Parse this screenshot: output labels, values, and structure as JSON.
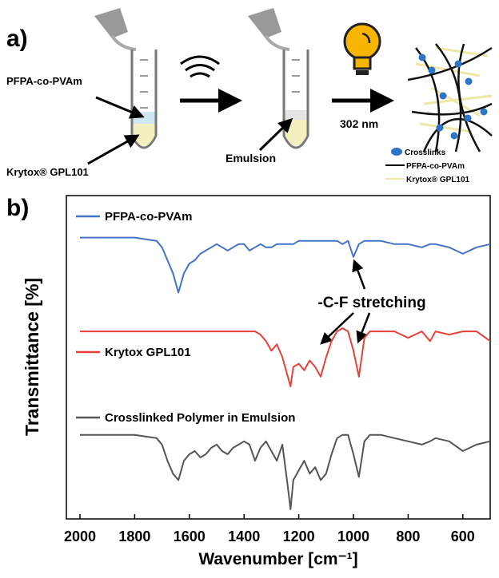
{
  "schematic": {
    "panel_label": "a)",
    "polymer_label": "PFPA-co-PVAm",
    "oil_label": "Krytox® GPL101",
    "emulsion_label": "Emulsion",
    "wavelength_label": "302 nm",
    "legend_crosslinks": "Crosslinks",
    "legend_polymer": "PFPA-co-PVAm",
    "legend_oil": "Krytox® GPL101"
  },
  "chart_data": {
    "type": "line",
    "panel_label": "b)",
    "xlabel": "Wavenumber [cm⁻¹]",
    "ylabel": "Transmittance [%]",
    "annotation": "-C-F stretching",
    "xlim": [
      2000,
      500
    ],
    "xticks": [
      2000,
      1800,
      1600,
      1400,
      1200,
      1000,
      800,
      600
    ],
    "ylim": [
      0,
      100
    ],
    "x": [
      2000,
      1900,
      1800,
      1720,
      1700,
      1680,
      1660,
      1640,
      1620,
      1600,
      1580,
      1560,
      1540,
      1520,
      1500,
      1480,
      1460,
      1440,
      1420,
      1400,
      1380,
      1360,
      1340,
      1320,
      1300,
      1280,
      1260,
      1240,
      1230,
      1220,
      1200,
      1180,
      1160,
      1140,
      1120,
      1100,
      1080,
      1060,
      1040,
      1020,
      1000,
      980,
      960,
      940,
      900,
      850,
      800,
      750,
      720,
      700,
      650,
      600,
      550,
      500
    ],
    "series": [
      {
        "name": "PFPA-co-PVAm",
        "color": "#4472c4",
        "values": [
          87,
          87,
          87,
          86,
          84,
          80,
          76,
          70,
          76,
          79,
          80,
          82,
          83,
          84,
          85,
          84,
          83,
          84,
          85,
          85,
          83,
          84,
          85,
          84,
          84,
          85,
          85,
          85,
          85,
          85,
          86,
          86,
          86,
          86,
          86,
          86,
          86,
          86,
          85,
          86,
          81,
          85,
          86,
          86,
          86,
          85,
          85,
          84,
          85,
          85,
          84,
          82,
          84,
          85
        ]
      },
      {
        "name": "Krytox GPL101",
        "color": "#e8413c",
        "values": [
          58,
          58,
          58,
          58,
          58,
          58,
          58,
          58,
          58,
          58,
          58,
          58,
          58,
          58,
          58,
          58,
          58,
          58,
          58,
          58,
          58,
          58,
          57,
          55,
          52,
          54,
          50,
          44,
          41,
          47,
          48,
          46,
          49,
          47,
          44,
          50,
          55,
          58,
          59,
          58,
          52,
          44,
          56,
          58,
          58,
          58,
          56,
          58,
          55,
          58,
          57,
          58,
          58,
          55
        ]
      },
      {
        "name": "Crosslinked Polymer in Emulsion",
        "color": "#555555",
        "values": [
          26,
          26,
          26,
          25,
          23,
          18,
          14,
          12,
          18,
          20,
          21,
          19,
          20,
          22,
          23,
          21,
          20,
          22,
          23,
          24,
          23,
          18,
          22,
          24,
          21,
          18,
          23,
          10,
          3,
          12,
          15,
          18,
          14,
          16,
          12,
          14,
          20,
          25,
          26,
          26,
          20,
          13,
          24,
          26,
          26,
          25,
          24,
          23,
          24,
          25,
          24,
          21,
          23,
          24
        ]
      }
    ]
  }
}
